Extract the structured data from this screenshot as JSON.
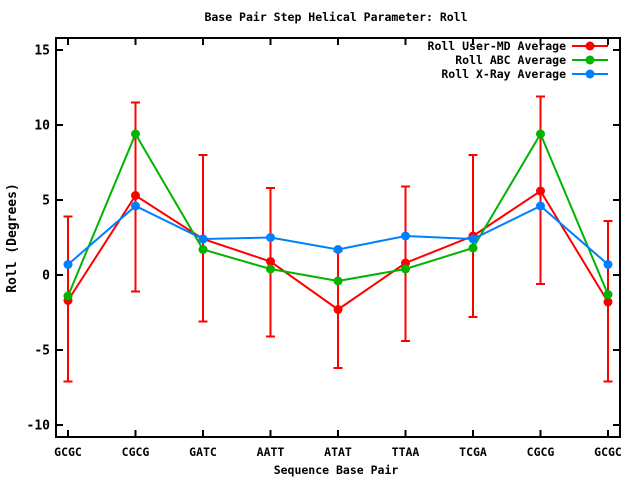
{
  "window": {
    "background": "#ffffff"
  },
  "chart_data": {
    "type": "line",
    "title": "Base Pair Step Helical Parameter: Roll",
    "xlabel": "Sequence Base Pair",
    "ylabel": "Roll (Degrees)",
    "categories": [
      "GCGC",
      "CGCG",
      "GATC",
      "AATT",
      "ATAT",
      "TTAA",
      "TCGA",
      "CGCG",
      "GCGC"
    ],
    "yticks": [
      -10,
      -5,
      0,
      5,
      10,
      15
    ],
    "ylim": [
      -10.8,
      15.8
    ],
    "grid": false,
    "legend_position": "top-right-inside",
    "axis_color": "#000000",
    "series": [
      {
        "name": "Roll User-MD Average",
        "color": "#ff0000",
        "marker": "filled-circle",
        "values": [
          -1.7,
          5.3,
          2.4,
          0.9,
          -2.3,
          0.8,
          2.6,
          5.6,
          -1.8
        ],
        "error_bars": [
          [
            -7.1,
            3.9
          ],
          [
            -1.1,
            11.5
          ],
          [
            -3.1,
            8.0
          ],
          [
            -4.1,
            5.8
          ],
          [
            -6.2,
            1.6
          ],
          [
            -4.4,
            5.9
          ],
          [
            -2.8,
            8.0
          ],
          [
            -0.6,
            11.9
          ],
          [
            -7.1,
            3.6
          ]
        ]
      },
      {
        "name": "Roll ABC Average",
        "color": "#00b400",
        "marker": "filled-circle",
        "values": [
          -1.4,
          9.4,
          1.7,
          0.4,
          -0.4,
          0.4,
          1.8,
          9.4,
          -1.3
        ]
      },
      {
        "name": "Roll X-Ray Average",
        "color": "#0080ff",
        "marker": "filled-circle",
        "values": [
          0.7,
          4.6,
          2.4,
          2.5,
          1.7,
          2.6,
          2.4,
          4.6,
          0.7
        ]
      }
    ]
  }
}
